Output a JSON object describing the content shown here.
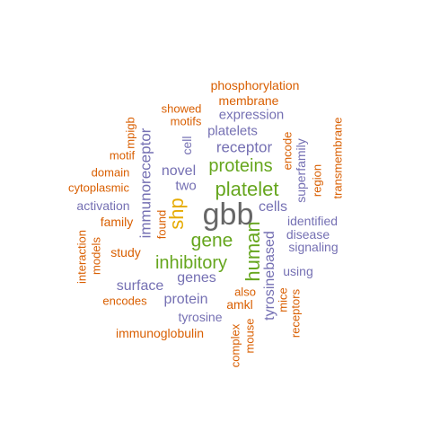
{
  "colors": {
    "orange": "#D95F02",
    "purple": "#7570B3",
    "green": "#1B9E77",
    "lime": "#66A61E",
    "gold": "#E6AB02",
    "gray": "#666666"
  },
  "words": [
    {
      "text": "gbb",
      "color": "gray"
    },
    {
      "text": "platelet",
      "color": "lime"
    },
    {
      "text": "proteins",
      "color": "lime"
    },
    {
      "text": "inhibitory",
      "color": "lime"
    },
    {
      "text": "human",
      "color": "lime"
    },
    {
      "text": "gene",
      "color": "lime"
    },
    {
      "text": "shp",
      "color": "gold"
    },
    {
      "text": "immunoreceptor",
      "color": "purple"
    },
    {
      "text": "receptor",
      "color": "purple"
    },
    {
      "text": "expression",
      "color": "purple"
    },
    {
      "text": "platelets",
      "color": "purple"
    },
    {
      "text": "novel",
      "color": "purple"
    },
    {
      "text": "two",
      "color": "purple"
    },
    {
      "text": "cells",
      "color": "purple"
    },
    {
      "text": "genes",
      "color": "purple"
    },
    {
      "text": "surface",
      "color": "purple"
    },
    {
      "text": "protein",
      "color": "purple"
    },
    {
      "text": "tyrosine",
      "color": "purple"
    },
    {
      "text": "tyrosinebased",
      "color": "purple"
    },
    {
      "text": "activation",
      "color": "purple"
    },
    {
      "text": "identified",
      "color": "purple"
    },
    {
      "text": "disease",
      "color": "purple"
    },
    {
      "text": "signaling",
      "color": "purple"
    },
    {
      "text": "using",
      "color": "purple"
    },
    {
      "text": "superfamily",
      "color": "purple"
    },
    {
      "text": "cell",
      "color": "purple"
    },
    {
      "text": "phosphorylation",
      "color": "orange"
    },
    {
      "text": "membrane",
      "color": "orange"
    },
    {
      "text": "showed",
      "color": "orange"
    },
    {
      "text": "motifs",
      "color": "orange"
    },
    {
      "text": "mpigb",
      "color": "orange"
    },
    {
      "text": "motif",
      "color": "orange"
    },
    {
      "text": "domain",
      "color": "orange"
    },
    {
      "text": "cytoplasmic",
      "color": "orange"
    },
    {
      "text": "family",
      "color": "orange"
    },
    {
      "text": "found",
      "color": "orange"
    },
    {
      "text": "study",
      "color": "orange"
    },
    {
      "text": "interaction",
      "color": "orange"
    },
    {
      "text": "models",
      "color": "orange"
    },
    {
      "text": "encodes",
      "color": "orange"
    },
    {
      "text": "encode",
      "color": "orange"
    },
    {
      "text": "region",
      "color": "orange"
    },
    {
      "text": "transmembrane",
      "color": "orange"
    },
    {
      "text": "also",
      "color": "orange"
    },
    {
      "text": "amkl",
      "color": "orange"
    },
    {
      "text": "mice",
      "color": "orange"
    },
    {
      "text": "receptors",
      "color": "orange"
    },
    {
      "text": "immunoglobulin",
      "color": "orange"
    },
    {
      "text": "complex",
      "color": "orange"
    },
    {
      "text": "mouse",
      "color": "orange"
    }
  ]
}
